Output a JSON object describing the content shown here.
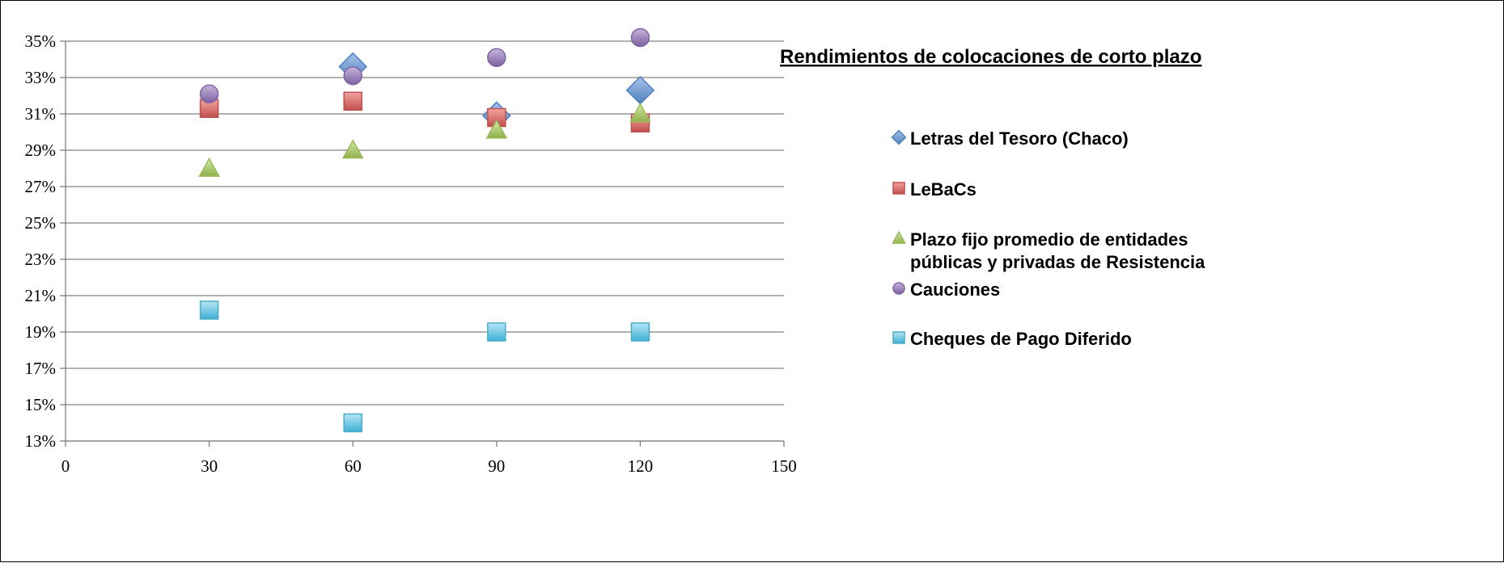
{
  "chart_data": {
    "type": "scatter",
    "title": "Rendimientos de colocaciones de corto plazo ",
    "xlabel": "",
    "ylabel": "",
    "xlim": [
      0,
      150
    ],
    "ylim": [
      13,
      35
    ],
    "x_ticks": [
      0,
      30,
      60,
      90,
      120,
      150
    ],
    "y_ticks": [
      13,
      15,
      17,
      19,
      21,
      23,
      25,
      27,
      29,
      31,
      33,
      35
    ],
    "y_tick_labels": [
      "13%",
      "15%",
      "17%",
      "19%",
      "21%",
      "23%",
      "25%",
      "27%",
      "29%",
      "31%",
      "33%",
      "35%"
    ],
    "x_tick_labels": [
      "0",
      "30",
      "60",
      "90",
      "120",
      "150"
    ],
    "grid": "horizontal",
    "legend_position": "right",
    "series": [
      {
        "name": "Letras del Tesoro (Chaco)",
        "marker": "diamond",
        "color": "#4f81bd",
        "x": [
          60,
          90,
          120
        ],
        "y": [
          33.6,
          30.9,
          32.3
        ]
      },
      {
        "name": "LeBaCs",
        "marker": "square",
        "color": "#c0504d",
        "x": [
          30,
          60,
          90,
          120
        ],
        "y": [
          31.3,
          31.7,
          30.8,
          30.5
        ]
      },
      {
        "name": "Plazo fijo promedio de entidades públicas y privadas de Resistencia",
        "name_lines": [
          "Plazo fijo promedio de entidades",
          "públicas y privadas de Resistencia"
        ],
        "marker": "triangle",
        "color": "#9bbb59",
        "x": [
          30,
          60,
          90,
          120
        ],
        "y": [
          28.0,
          29.0,
          30.1,
          31.0
        ]
      },
      {
        "name": "Cauciones",
        "marker": "circle",
        "color": "#8064a2",
        "x": [
          30,
          60,
          90,
          120
        ],
        "y": [
          32.1,
          33.1,
          34.1,
          35.2
        ]
      },
      {
        "name": "Cheques de Pago Diferido",
        "marker": "square",
        "color": "#4bacc6",
        "x": [
          30,
          60,
          90,
          120
        ],
        "y": [
          20.2,
          14.0,
          19.0,
          19.0
        ]
      }
    ]
  }
}
